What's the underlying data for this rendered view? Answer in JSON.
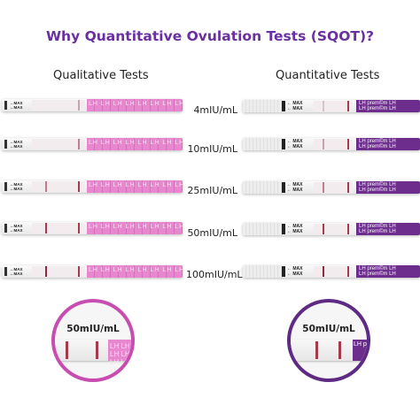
{
  "title": "Why Quantitative Ovulation Tests (SQOT)?",
  "left_header": "Qualitative Tests",
  "right_header": "Quantitative Tests",
  "concentrations": [
    "4mIU/mL",
    "10mIU/mL",
    "25mIU/mL",
    "50mIU/mL",
    "100mIU/mL"
  ],
  "qualitative_strip": {
    "max_label": "←MAX",
    "handle_text": "LH LH LH LH LH LH LH LH LH LH LH LH LH LH",
    "line_color": "#a63a4d",
    "handle_color": "#e788cf"
  },
  "quantitative_strip": {
    "max_label": "← MAX",
    "handle_brand": "LH  prem©m  LH",
    "line_color": "#a63a4d",
    "handle_color": "#6d2d8c"
  },
  "callout_left": {
    "label": "50mIU/mL",
    "border_color": "#c74db0"
  },
  "callout_right": {
    "label": "50mIU/mL",
    "border_color": "#5e2a84"
  }
}
